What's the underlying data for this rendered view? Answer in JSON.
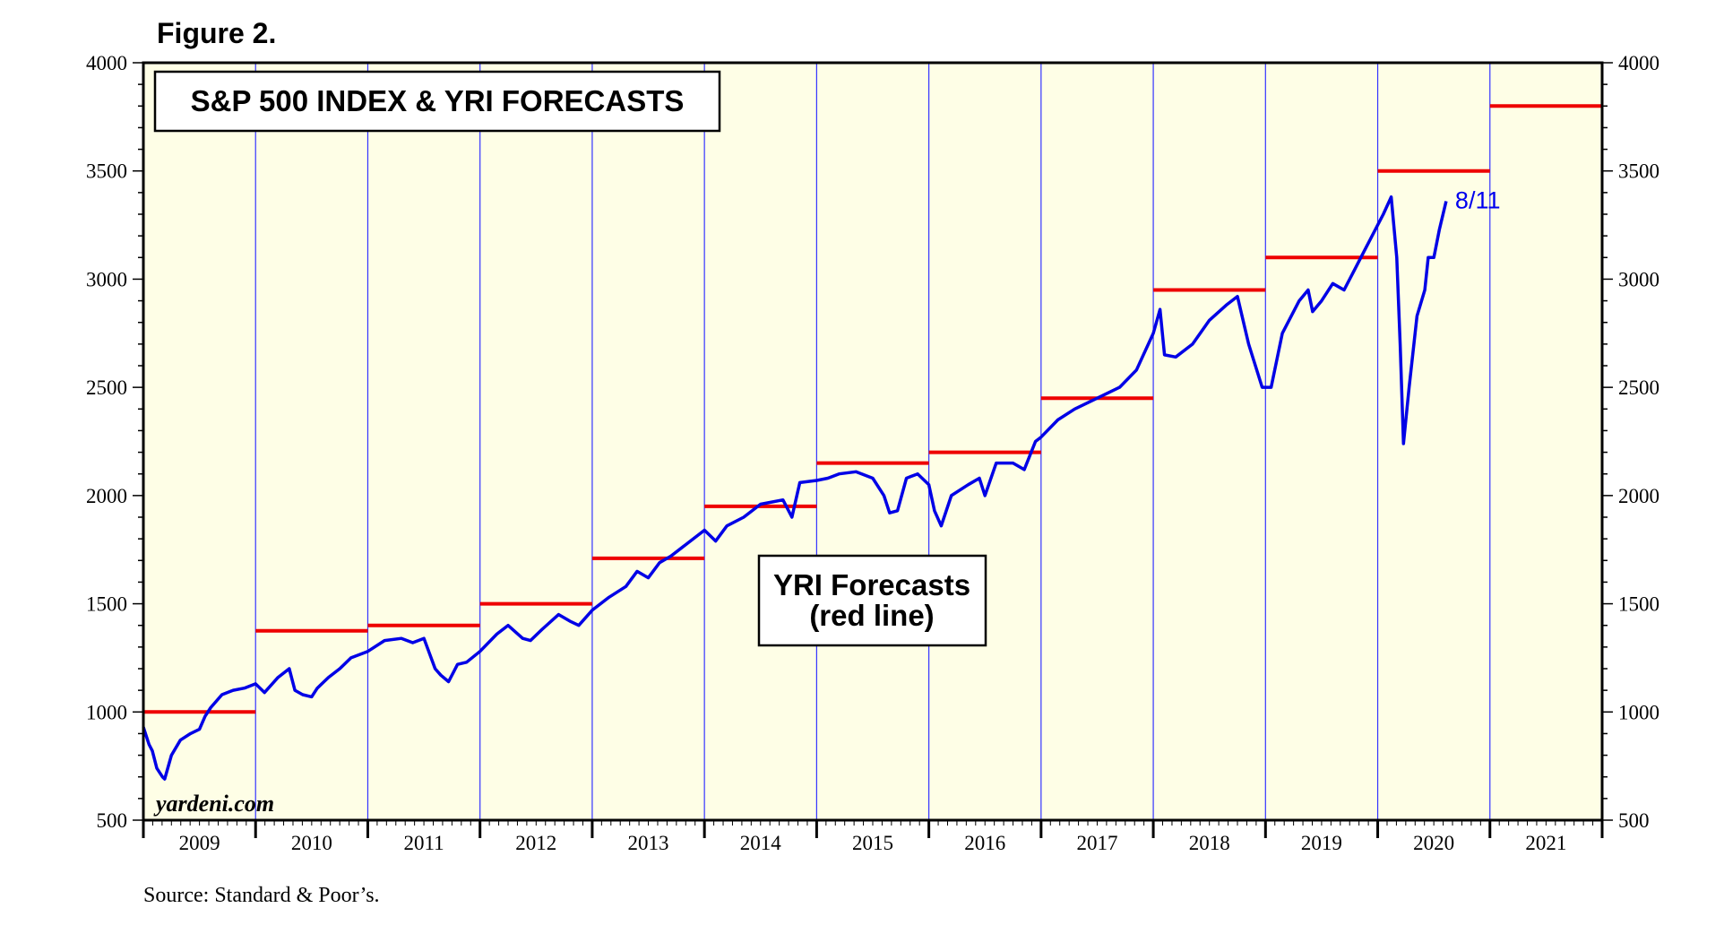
{
  "figure_label": "Figure 2.",
  "source": "Source: Standard & Poor’s.",
  "watermark": "yardeni.com",
  "colors": {
    "plot_bg": "#fefee6",
    "index_line": "#0000e6",
    "forecast_line": "#ee0000",
    "year_grid": "#3333ff"
  },
  "chart_data": {
    "type": "line",
    "title": "S&P 500 INDEX & YRI FORECASTS",
    "xlabel": "",
    "ylabel": "",
    "xlim": [
      2009,
      2022
    ],
    "ylim": [
      500,
      4000
    ],
    "y_ticks": [
      500,
      1000,
      1500,
      2000,
      2500,
      3000,
      3500,
      4000
    ],
    "x_tick_labels": [
      "2009",
      "2010",
      "2011",
      "2012",
      "2013",
      "2014",
      "2015",
      "2016",
      "2017",
      "2018",
      "2019",
      "2020",
      "2021"
    ],
    "annotation": [
      "YRI Forecasts",
      "(red line)"
    ],
    "end_label": "8/11",
    "series": [
      {
        "name": "S&P 500 Index",
        "color": "#0000e6",
        "x": [
          2009.0,
          2009.05,
          2009.08,
          2009.12,
          2009.17,
          2009.19,
          2009.25,
          2009.33,
          2009.42,
          2009.5,
          2009.55,
          2009.6,
          2009.7,
          2009.8,
          2009.9,
          2010.0,
          2010.08,
          2010.2,
          2010.3,
          2010.35,
          2010.42,
          2010.5,
          2010.55,
          2010.65,
          2010.75,
          2010.85,
          2011.0,
          2011.15,
          2011.3,
          2011.4,
          2011.5,
          2011.6,
          2011.65,
          2011.72,
          2011.8,
          2011.88,
          2012.0,
          2012.15,
          2012.25,
          2012.38,
          2012.45,
          2012.55,
          2012.7,
          2012.8,
          2012.88,
          2013.0,
          2013.15,
          2013.3,
          2013.4,
          2013.5,
          2013.6,
          2013.7,
          2013.85,
          2014.0,
          2014.1,
          2014.2,
          2014.35,
          2014.5,
          2014.7,
          2014.78,
          2014.85,
          2015.0,
          2015.1,
          2015.2,
          2015.35,
          2015.5,
          2015.6,
          2015.65,
          2015.72,
          2015.8,
          2015.9,
          2016.0,
          2016.05,
          2016.11,
          2016.2,
          2016.35,
          2016.45,
          2016.5,
          2016.6,
          2016.75,
          2016.85,
          2016.95,
          2017.0,
          2017.15,
          2017.3,
          2017.5,
          2017.7,
          2017.85,
          2018.0,
          2018.06,
          2018.1,
          2018.2,
          2018.35,
          2018.5,
          2018.65,
          2018.75,
          2018.85,
          2018.97,
          2019.05,
          2019.15,
          2019.3,
          2019.38,
          2019.42,
          2019.5,
          2019.6,
          2019.7,
          2019.8,
          2019.9,
          2020.0,
          2020.05,
          2020.12,
          2020.17,
          2020.2,
          2020.23,
          2020.28,
          2020.35,
          2020.42,
          2020.45,
          2020.5,
          2020.55,
          2020.61
        ],
        "values": [
          930,
          850,
          820,
          740,
          700,
          690,
          800,
          870,
          900,
          920,
          980,
          1020,
          1080,
          1100,
          1110,
          1130,
          1090,
          1160,
          1200,
          1100,
          1080,
          1070,
          1110,
          1160,
          1200,
          1250,
          1280,
          1330,
          1340,
          1320,
          1340,
          1200,
          1170,
          1140,
          1220,
          1230,
          1280,
          1360,
          1400,
          1340,
          1330,
          1380,
          1450,
          1420,
          1400,
          1470,
          1530,
          1580,
          1650,
          1620,
          1690,
          1720,
          1780,
          1840,
          1790,
          1860,
          1900,
          1960,
          1980,
          1900,
          2060,
          2070,
          2080,
          2100,
          2110,
          2080,
          2000,
          1920,
          1930,
          2080,
          2100,
          2050,
          1930,
          1860,
          2000,
          2050,
          2080,
          2000,
          2150,
          2150,
          2120,
          2250,
          2270,
          2350,
          2400,
          2450,
          2500,
          2580,
          2750,
          2860,
          2650,
          2640,
          2700,
          2810,
          2880,
          2920,
          2700,
          2500,
          2500,
          2750,
          2900,
          2950,
          2850,
          2900,
          2980,
          2950,
          3050,
          3150,
          3250,
          3300,
          3380,
          3100,
          2700,
          2240,
          2500,
          2830,
          2950,
          3100,
          3100,
          3230,
          3360
        ]
      },
      {
        "name": "YRI Forecasts",
        "color": "#ee0000",
        "type": "step",
        "segments": [
          {
            "year": 2009,
            "value": 1000
          },
          {
            "year": 2010,
            "value": 1375
          },
          {
            "year": 2011,
            "value": 1400
          },
          {
            "year": 2012,
            "value": 1500
          },
          {
            "year": 2013,
            "value": 1710
          },
          {
            "year": 2014,
            "value": 1950
          },
          {
            "year": 2015,
            "value": 2150
          },
          {
            "year": 2016,
            "value": 2200
          },
          {
            "year": 2017,
            "value": 2450
          },
          {
            "year": 2018,
            "value": 2950
          },
          {
            "year": 2019,
            "value": 3100
          },
          {
            "year": 2020,
            "value": 3500
          },
          {
            "year": 2021,
            "value": 3800
          }
        ]
      }
    ]
  }
}
